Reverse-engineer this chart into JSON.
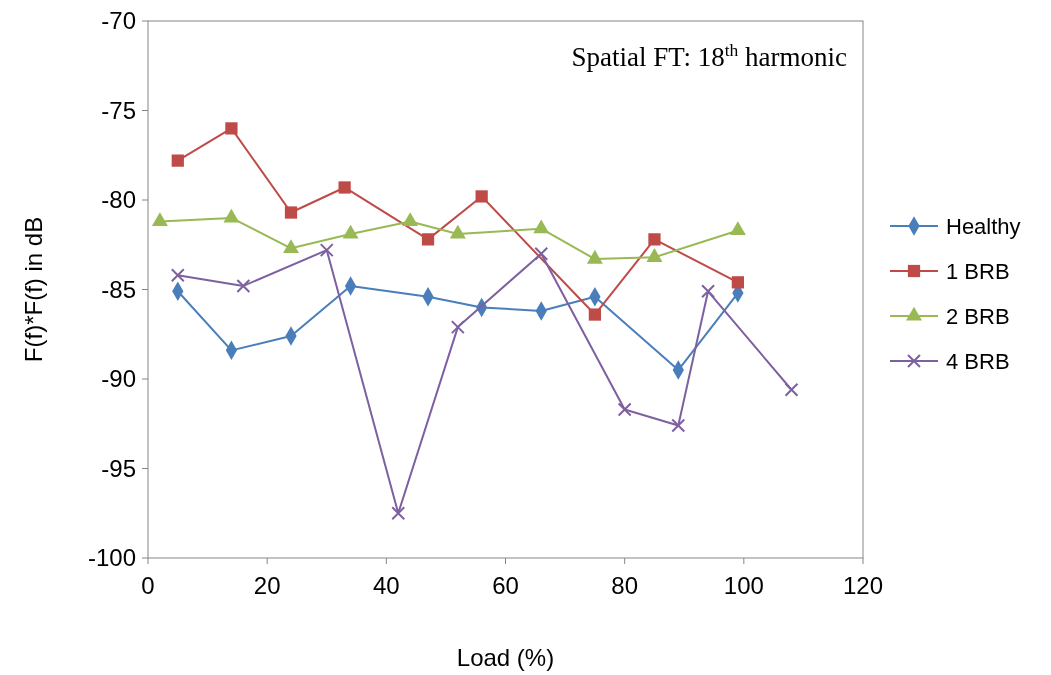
{
  "chart_data": {
    "type": "line",
    "xlabel": "Load (%)",
    "ylabel": "F(f)*F(f) in dB",
    "annotations": [
      "Spatial FT: 18$^{th}$ harmonic"
    ],
    "xlim": [
      0,
      120
    ],
    "xticks": [
      0,
      20,
      40,
      60,
      80,
      100,
      120
    ],
    "ylim": [
      -100,
      -70
    ],
    "yticks": [
      -100,
      -95,
      -90,
      -85,
      -80,
      -75,
      -70
    ],
    "grid": false,
    "legend": "right",
    "line_style": "solid",
    "series": [
      {
        "name": "Healthy",
        "color": "#4a7ebb",
        "marker": "diamond",
        "x": [
          5,
          14,
          24,
          34,
          47,
          56,
          66,
          75,
          89,
          99
        ],
        "values": [
          -85.1,
          -88.4,
          -87.6,
          -84.8,
          -85.4,
          -86.0,
          -86.2,
          -85.4,
          -89.5,
          -85.2
        ]
      },
      {
        "name": "1 BRB",
        "color": "#be4b48",
        "marker": "square",
        "x": [
          5,
          14,
          24,
          33,
          47,
          56,
          75,
          85,
          99
        ],
        "values": [
          -77.8,
          -76.0,
          -80.7,
          -79.3,
          -82.2,
          -79.8,
          -86.4,
          -82.2,
          -84.6
        ]
      },
      {
        "name": "2 BRB",
        "color": "#98b954",
        "marker": "triangle",
        "x": [
          2,
          14,
          24,
          34,
          44,
          52,
          66,
          75,
          85,
          99
        ],
        "values": [
          -81.2,
          -81.0,
          -82.7,
          -81.9,
          -81.2,
          -81.9,
          -81.6,
          -83.3,
          -83.2,
          -81.7
        ]
      },
      {
        "name": "4 BRB",
        "color": "#7d60a0",
        "marker": "cross",
        "x": [
          5,
          16,
          30,
          42,
          52,
          66,
          80,
          89,
          94,
          108
        ],
        "values": [
          -84.2,
          -84.8,
          -82.8,
          -97.5,
          -87.1,
          -83.0,
          -91.7,
          -92.6,
          -85.1,
          -90.6
        ]
      }
    ]
  }
}
